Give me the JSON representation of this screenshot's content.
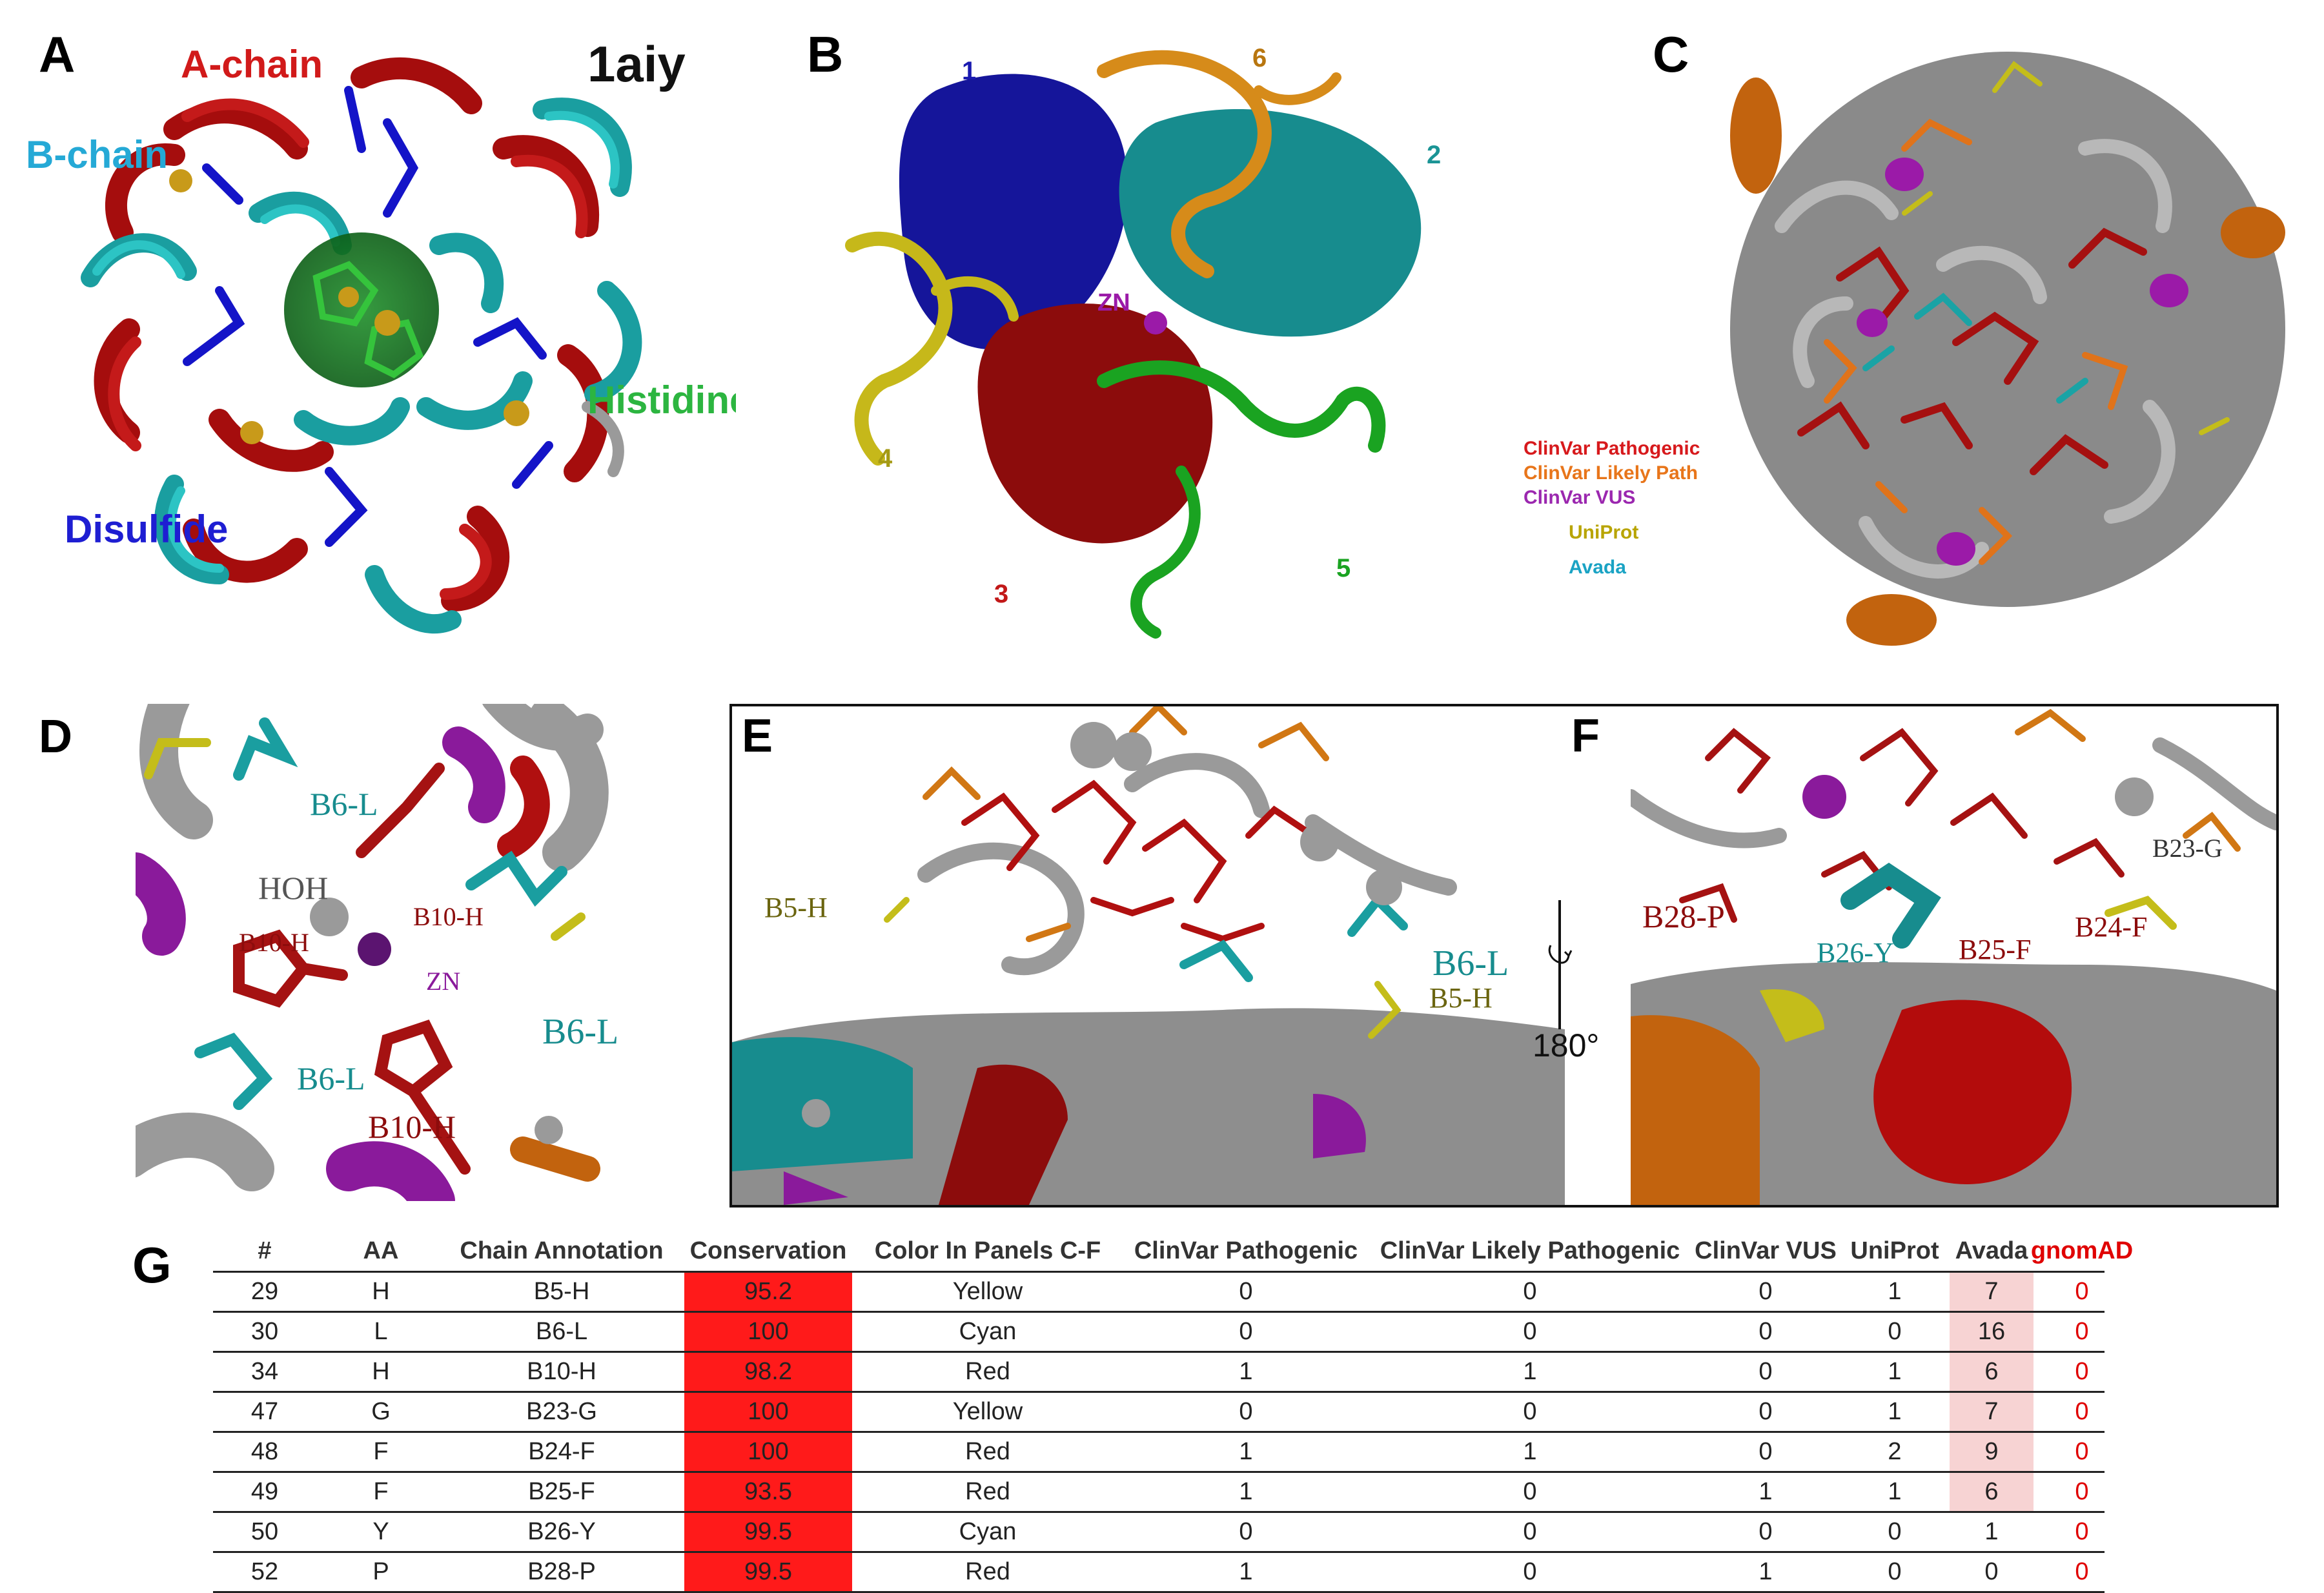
{
  "panels": {
    "A": {
      "label": "A",
      "pdb": "1aiy",
      "a_chain": "A-chain",
      "b_chain": "B-chain",
      "histidine": "Histidine",
      "disulfide": "Disulfide"
    },
    "B": {
      "label": "B",
      "zn": "ZN",
      "numbers": [
        "1",
        "2",
        "3",
        "4",
        "5",
        "6"
      ]
    },
    "C": {
      "label": "C",
      "legend": [
        {
          "text": "ClinVar Pathogenic",
          "color": "#d7191c"
        },
        {
          "text": "ClinVar Likely Path",
          "color": "#e8751a"
        },
        {
          "text": "ClinVar VUS",
          "color": "#9b27af"
        },
        {
          "text": "UniProt",
          "color": "#b8a400"
        },
        {
          "text": "Avada",
          "color": "#1aa3c4"
        }
      ]
    },
    "D": {
      "label": "D",
      "b6l_top": "B6-L",
      "hoh": "HOH",
      "b10h_right": "B10-H",
      "b10h_left": "B10-H",
      "zn": "ZN",
      "b6l_right": "B6-L",
      "b6l_bottom": "B6-L",
      "b10h_bottom": "B10-H"
    },
    "E": {
      "label": "E",
      "b5h_left": "B5-H",
      "b6l": "B6-L",
      "b5h_right": "B5-H",
      "rotation": "180°"
    },
    "F": {
      "label": "F",
      "b28p": "B28-P",
      "b26y": "B26-Y",
      "b25f": "B25-F",
      "b24f": "B24-F",
      "b23g": "B23-G"
    },
    "G": {
      "label": "G"
    }
  },
  "table": {
    "headers": [
      "#",
      "AA",
      "Chain Annotation",
      "Conservation",
      "Color In Panels C-F",
      "ClinVar Pathogenic",
      "ClinVar Likely Pathogenic",
      "ClinVar VUS",
      "UniProt",
      "Avada",
      "gnomAD"
    ],
    "rows": [
      [
        "29",
        "H",
        "B5-H",
        "95.2",
        "Yellow",
        "0",
        "0",
        "0",
        "1",
        "7",
        "0"
      ],
      [
        "30",
        "L",
        "B6-L",
        "100",
        "Cyan",
        "0",
        "0",
        "0",
        "0",
        "16",
        "0"
      ],
      [
        "34",
        "H",
        "B10-H",
        "98.2",
        "Red",
        "1",
        "1",
        "0",
        "1",
        "6",
        "0"
      ],
      [
        "47",
        "G",
        "B23-G",
        "100",
        "Yellow",
        "0",
        "0",
        "0",
        "1",
        "7",
        "0"
      ],
      [
        "48",
        "F",
        "B24-F",
        "100",
        "Red",
        "1",
        "1",
        "0",
        "2",
        "9",
        "0"
      ],
      [
        "49",
        "F",
        "B25-F",
        "93.5",
        "Red",
        "1",
        "0",
        "1",
        "1",
        "6",
        "0"
      ],
      [
        "50",
        "Y",
        "B26-Y",
        "99.5",
        "Cyan",
        "0",
        "0",
        "0",
        "0",
        "1",
        "0"
      ],
      [
        "52",
        "P",
        "B28-P",
        "99.5",
        "Red",
        "1",
        "0",
        "1",
        "0",
        "0",
        "0"
      ]
    ],
    "colors": {
      "conservation_fill": "#ff1a1a",
      "gnomad_text": "#e00000",
      "avada_fill": "#f7d3d3"
    }
  }
}
